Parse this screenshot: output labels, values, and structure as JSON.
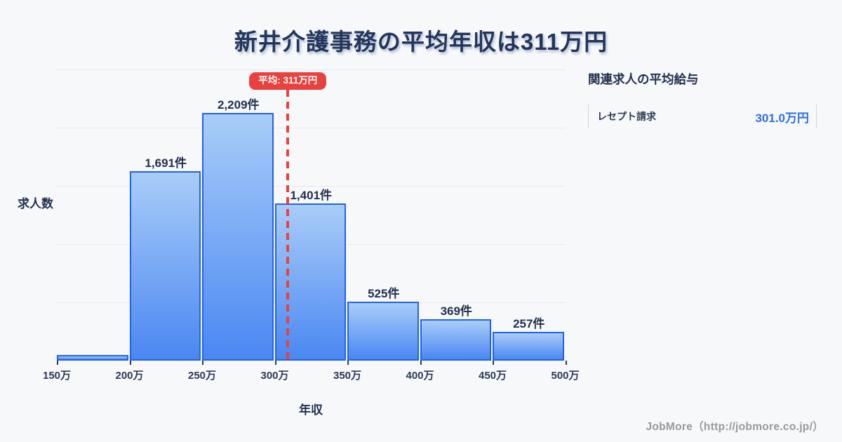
{
  "title": "新井介護事務の平均年収は311万円",
  "chart_data": {
    "type": "bar",
    "title": "新井介護事務の平均年収は311万円",
    "xlabel": "年収",
    "ylabel": "求人数",
    "categories": [
      "150万",
      "200万",
      "250万",
      "300万",
      "350万",
      "400万",
      "450万",
      "500万"
    ],
    "values": [
      50,
      1691,
      2209,
      1401,
      525,
      369,
      257
    ],
    "bar_labels": [
      "",
      "1,691件",
      "2,209件",
      "1,401件",
      "525件",
      "369件",
      "257件"
    ],
    "bin_width": 50,
    "x_start": 150,
    "ylim": [
      0,
      2600
    ],
    "grid": true,
    "legend": false,
    "average": {
      "value": 311,
      "label": "平均: 311万円"
    }
  },
  "side_panel": {
    "heading": "関連求人の平均給与",
    "items": [
      {
        "label": "レセプト請求",
        "value": "301.0万円"
      }
    ]
  },
  "footer": {
    "credit": "JobMore（http://jobmore.co.jp/）"
  },
  "colors": {
    "background": "#f7f8fa",
    "bar_fill_top": "#a9cdf8",
    "bar_fill_bottom": "#4a87f2",
    "bar_border": "#2262e9",
    "average_red": "#e8413e",
    "title_navy": "#22355a",
    "value_blue": "#2e6fe0",
    "credit_gray": "#98999e"
  }
}
